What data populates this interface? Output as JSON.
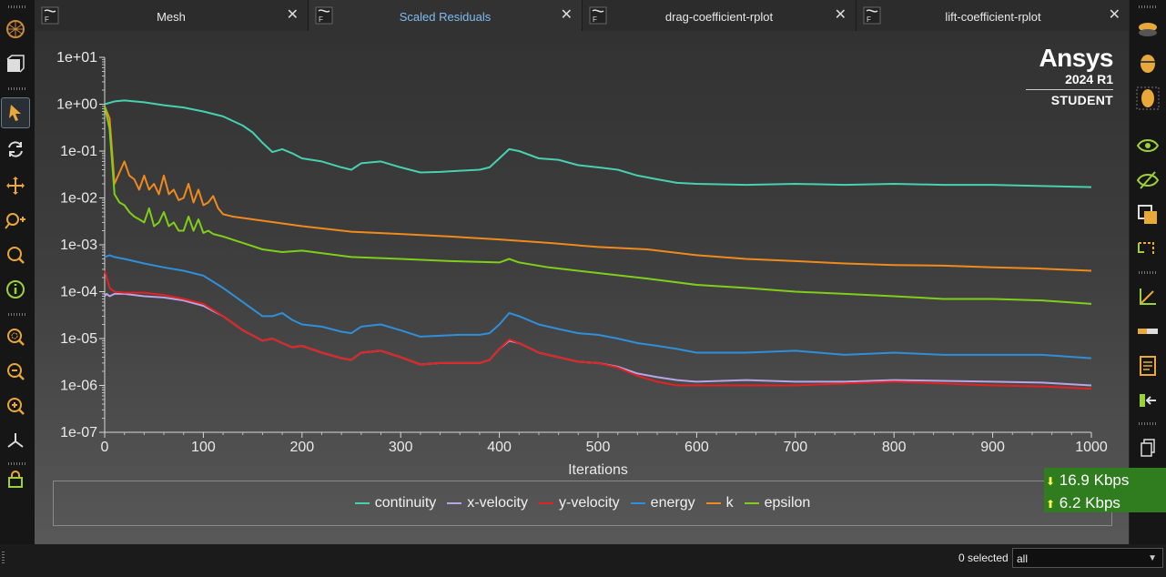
{
  "tabs": [
    {
      "label": "Mesh",
      "active": false
    },
    {
      "label": "Scaled Residuals",
      "active": true
    },
    {
      "label": "drag-coefficient-rplot",
      "active": false
    },
    {
      "label": "lift-coefficient-rplot",
      "active": false
    }
  ],
  "tab_close_glyph": "✕",
  "tab_file_badge": "F",
  "brand": {
    "name": "Ansys",
    "version": "2024 R1",
    "edition": "STUDENT"
  },
  "network": {
    "down": "16.9 Kbps",
    "up": "6.2 Kbps",
    "down_glyph": "⬇",
    "up_glyph": "⬆"
  },
  "status": {
    "selected_text": "0 selected",
    "filter_value": "all",
    "dropdown_glyph": "▼"
  },
  "left_toolbar_icons": [
    "mesh-display-icon",
    "view-cube-icon",
    "pointer-select-icon",
    "rotate-icon",
    "pan-icon",
    "zoom-pan-icon",
    "zoom-icon",
    "probe-info-icon",
    "zoom-to-fit-icon",
    "zoom-out-icon",
    "zoom-in-icon",
    "axes-triad-icon",
    "lock-icon"
  ],
  "right_toolbar_icons": [
    "disc-top-icon",
    "disc-side-icon",
    "disc-mesh-icon",
    "eye-show-icon",
    "eye-hide-icon",
    "overlay-icon",
    "clip-icon",
    "axes-icon",
    "slider-icon",
    "report-icon",
    "export-icon",
    "copy-icon"
  ],
  "colors": {
    "continuity": "#46d1b0",
    "x-velocity": "#b7a6e6",
    "y-velocity": "#e32222",
    "energy": "#2f8fd9",
    "k": "#f08a1c",
    "epsilon": "#7fcf1a",
    "active_tab_text": "#7fbcf0",
    "network_bg": "#2f7d1f"
  },
  "chart_data": {
    "type": "line",
    "title": "",
    "xlabel": "Iterations",
    "ylabel": "",
    "xlim": [
      0,
      1000
    ],
    "ylim": [
      1e-07,
      10
    ],
    "yscale": "log",
    "x_ticks": [
      "0",
      "100",
      "200",
      "300",
      "400",
      "500",
      "600",
      "700",
      "800",
      "900",
      "1000"
    ],
    "y_ticks": [
      "1e+01",
      "1e+00",
      "1e-01",
      "1e-02",
      "1e-03",
      "1e-04",
      "1e-05",
      "1e-06",
      "1e-07"
    ],
    "grid": false,
    "legend": "bottom",
    "series": [
      {
        "name": "continuity",
        "x": [
          0,
          10,
          20,
          40,
          60,
          80,
          100,
          120,
          140,
          150,
          160,
          170,
          180,
          190,
          200,
          220,
          240,
          250,
          260,
          280,
          300,
          320,
          340,
          360,
          380,
          390,
          400,
          410,
          420,
          440,
          460,
          480,
          500,
          520,
          540,
          560,
          580,
          600,
          650,
          700,
          750,
          800,
          850,
          900,
          950,
          1000
        ],
        "y": [
          1.0,
          1.15,
          1.2,
          1.1,
          0.95,
          0.85,
          0.7,
          0.55,
          0.35,
          0.25,
          0.15,
          0.095,
          0.11,
          0.09,
          0.07,
          0.06,
          0.045,
          0.04,
          0.055,
          0.06,
          0.045,
          0.035,
          0.036,
          0.038,
          0.04,
          0.045,
          0.07,
          0.11,
          0.1,
          0.07,
          0.065,
          0.05,
          0.045,
          0.04,
          0.03,
          0.025,
          0.021,
          0.02,
          0.019,
          0.02,
          0.019,
          0.02,
          0.019,
          0.019,
          0.018,
          0.017
        ]
      },
      {
        "name": "x-velocity",
        "x": [
          0,
          2,
          5,
          10,
          20,
          40,
          60,
          80,
          100,
          120,
          140,
          160,
          170,
          180,
          190,
          200,
          220,
          240,
          250,
          260,
          280,
          300,
          320,
          340,
          360,
          380,
          390,
          400,
          410,
          420,
          440,
          460,
          480,
          500,
          520,
          540,
          560,
          580,
          600,
          650,
          700,
          750,
          800,
          850,
          900,
          950,
          1000
        ],
        "y": [
          8e-05,
          9e-05,
          8e-05,
          9e-05,
          9e-05,
          8e-05,
          7.5e-05,
          6.5e-05,
          5e-05,
          3e-05,
          1.5e-05,
          9e-06,
          1e-05,
          8e-06,
          6.5e-06,
          7e-06,
          5e-06,
          3.8e-06,
          3.5e-06,
          5e-06,
          5.5e-06,
          4e-06,
          2.8e-06,
          3e-06,
          3e-06,
          3e-06,
          3.5e-06,
          6e-06,
          9e-06,
          8e-06,
          5e-06,
          4e-06,
          3.2e-06,
          3e-06,
          2.5e-06,
          1.8e-06,
          1.5e-06,
          1.3e-06,
          1.2e-06,
          1.3e-06,
          1.2e-06,
          1.2e-06,
          1.3e-06,
          1.25e-06,
          1.2e-06,
          1.15e-06,
          1e-06
        ]
      },
      {
        "name": "y-velocity",
        "x": [
          0,
          2,
          5,
          10,
          20,
          40,
          60,
          80,
          100,
          120,
          140,
          160,
          170,
          180,
          190,
          200,
          220,
          240,
          250,
          260,
          280,
          300,
          320,
          340,
          360,
          380,
          390,
          400,
          410,
          420,
          440,
          460,
          480,
          500,
          520,
          540,
          560,
          580,
          600,
          650,
          700,
          750,
          800,
          850,
          900,
          950,
          1000
        ],
        "y": [
          0.00028,
          0.0002,
          0.00012,
          0.0001,
          9.5e-05,
          9.5e-05,
          8.5e-05,
          7e-05,
          5.5e-05,
          3e-05,
          1.5e-05,
          9e-06,
          1e-05,
          8e-06,
          6.5e-06,
          7e-06,
          5e-06,
          3.8e-06,
          3.5e-06,
          5e-06,
          5.5e-06,
          4e-06,
          2.8e-06,
          3e-06,
          3e-06,
          3e-06,
          3.5e-06,
          6e-06,
          9.5e-06,
          8e-06,
          5e-06,
          4e-06,
          3.2e-06,
          3e-06,
          2.4e-06,
          1.6e-06,
          1.2e-06,
          1e-06,
          1e-06,
          1e-06,
          1e-06,
          1.1e-06,
          1.2e-06,
          1.1e-06,
          1e-06,
          9.5e-07,
          8.5e-07
        ]
      },
      {
        "name": "energy",
        "x": [
          0,
          5,
          10,
          20,
          40,
          60,
          80,
          100,
          120,
          140,
          160,
          170,
          180,
          190,
          200,
          220,
          240,
          250,
          260,
          280,
          300,
          320,
          340,
          360,
          380,
          390,
          400,
          410,
          420,
          440,
          460,
          480,
          500,
          520,
          540,
          560,
          580,
          600,
          650,
          700,
          750,
          800,
          850,
          900,
          950,
          1000
        ],
        "y": [
          0.00055,
          0.0006,
          0.00055,
          0.0005,
          0.0004,
          0.00033,
          0.00028,
          0.00022,
          0.00012,
          6e-05,
          3e-05,
          3e-05,
          3.5e-05,
          2.5e-05,
          2e-05,
          1.8e-05,
          1.4e-05,
          1.3e-05,
          1.8e-05,
          2e-05,
          1.5e-05,
          1.1e-05,
          1.15e-05,
          1.2e-05,
          1.2e-05,
          1.3e-05,
          2e-05,
          3.5e-05,
          3e-05,
          2e-05,
          1.6e-05,
          1.3e-05,
          1.2e-05,
          1e-05,
          8e-06,
          7e-06,
          6e-06,
          5e-06,
          5e-06,
          5.5e-06,
          4.5e-06,
          5e-06,
          4.5e-06,
          4.5e-06,
          4.5e-06,
          3.8e-06
        ]
      },
      {
        "name": "k",
        "x": [
          0,
          5,
          10,
          15,
          20,
          25,
          30,
          35,
          40,
          45,
          50,
          55,
          60,
          65,
          70,
          75,
          80,
          85,
          90,
          95,
          100,
          105,
          110,
          115,
          120,
          130,
          150,
          200,
          250,
          300,
          350,
          400,
          450,
          500,
          550,
          600,
          650,
          700,
          750,
          800,
          850,
          900,
          950,
          1000
        ],
        "y": [
          0.9,
          0.5,
          0.02,
          0.035,
          0.06,
          0.03,
          0.025,
          0.015,
          0.03,
          0.015,
          0.02,
          0.012,
          0.03,
          0.012,
          0.015,
          0.009,
          0.01,
          0.02,
          0.008,
          0.015,
          0.007,
          0.008,
          0.011,
          0.006,
          0.0045,
          0.004,
          0.0035,
          0.0025,
          0.0019,
          0.0017,
          0.0015,
          0.0013,
          0.0011,
          0.0009,
          0.0008,
          0.0006,
          0.0005,
          0.00045,
          0.0004,
          0.00037,
          0.00036,
          0.00033,
          0.00031,
          0.00028
        ]
      },
      {
        "name": "epsilon",
        "x": [
          0,
          5,
          10,
          15,
          20,
          25,
          30,
          35,
          40,
          45,
          50,
          55,
          60,
          65,
          70,
          75,
          80,
          85,
          90,
          95,
          100,
          105,
          110,
          120,
          140,
          160,
          180,
          200,
          250,
          300,
          350,
          400,
          410,
          420,
          450,
          500,
          550,
          600,
          650,
          700,
          750,
          800,
          850,
          900,
          950,
          1000
        ],
        "y": [
          0.9,
          0.3,
          0.012,
          0.008,
          0.007,
          0.005,
          0.004,
          0.0035,
          0.003,
          0.006,
          0.0025,
          0.003,
          0.005,
          0.0025,
          0.003,
          0.002,
          0.002,
          0.004,
          0.002,
          0.0035,
          0.0018,
          0.002,
          0.0017,
          0.0015,
          0.0011,
          0.0008,
          0.0007,
          0.00075,
          0.00055,
          0.0005,
          0.00045,
          0.00042,
          0.0005,
          0.00042,
          0.00033,
          0.00025,
          0.00019,
          0.00014,
          0.00012,
          0.0001,
          9e-05,
          8e-05,
          7e-05,
          7e-05,
          6.5e-05,
          5.5e-05
        ]
      }
    ]
  }
}
